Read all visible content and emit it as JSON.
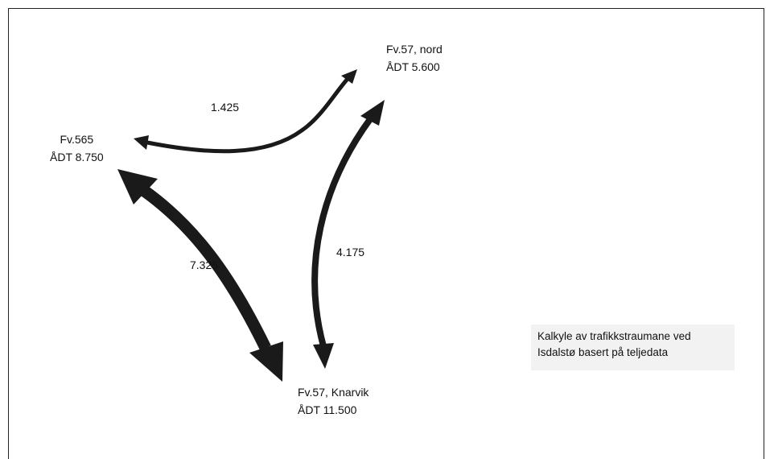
{
  "nodes": {
    "fv57_nord": {
      "name": "Fv.57, nord",
      "adt": "ÅDT 5.600"
    },
    "fv565": {
      "name": "Fv.565",
      "adt": "ÅDT 8.750"
    },
    "fv57_knarvik": {
      "name": "Fv.57, Knarvik",
      "adt": "ÅDT 11.500"
    }
  },
  "flows": {
    "fv565_fv57_nord": "1.425",
    "fv565_fv57_knarvik": "7.325",
    "fv57_nord_fv57_knarvik": "4.175"
  },
  "note": "Kalkyle av trafikkstraumane ved Isdalstø basert på teljedata",
  "colors": {
    "arrow": "#1a1a1a",
    "note_bg": "#f2f2f2",
    "frame": "#222222"
  }
}
